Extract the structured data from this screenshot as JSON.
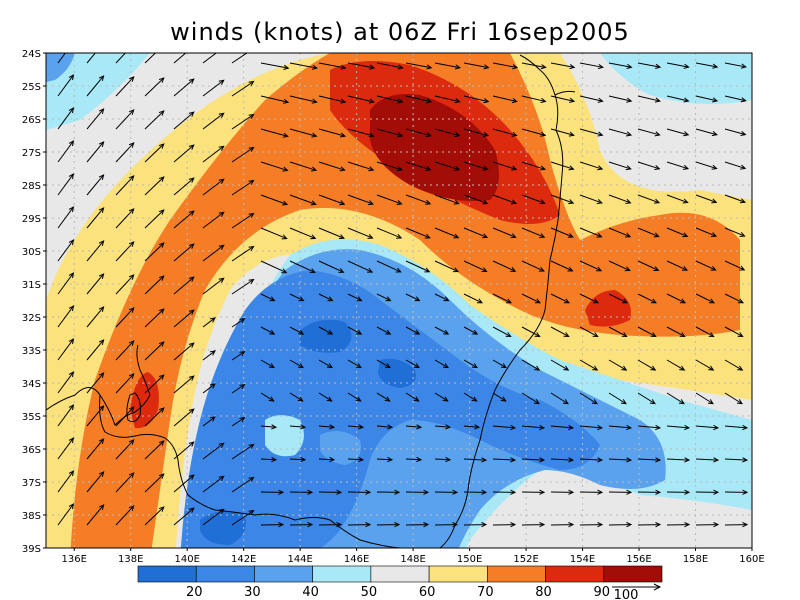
{
  "title": "winds (knots) at 06Z Fri 16sep2005",
  "x_ticks": [
    "136E",
    "138E",
    "140E",
    "142E",
    "144E",
    "146E",
    "148E",
    "150E",
    "152E",
    "154E",
    "156E",
    "158E",
    "160E"
  ],
  "x_tick_values": [
    136,
    138,
    140,
    142,
    144,
    146,
    148,
    150,
    152,
    154,
    156,
    158,
    160
  ],
  "y_ticks": [
    "24S",
    "25S",
    "26S",
    "27S",
    "28S",
    "29S",
    "30S",
    "31S",
    "32S",
    "33S",
    "34S",
    "35S",
    "36S",
    "37S",
    "38S",
    "39S"
  ],
  "y_tick_values": [
    24,
    25,
    26,
    27,
    28,
    29,
    30,
    31,
    32,
    33,
    34,
    35,
    36,
    37,
    38,
    39
  ],
  "colorbar": {
    "levels": [
      "20",
      "30",
      "40",
      "50",
      "60",
      "70",
      "80",
      "90"
    ],
    "colors": [
      "#1f6fd6",
      "#3b86e6",
      "#5aa2ee",
      "#a9e9f7",
      "#e8e8e8",
      "#fbe27c",
      "#f57d26",
      "#dc2a0e",
      "#a20d07"
    ],
    "vector_ref_label": "100"
  },
  "colors": {
    "grid": "#bbbbbb",
    "coast": "#000000",
    "arrow": "#000000"
  }
}
